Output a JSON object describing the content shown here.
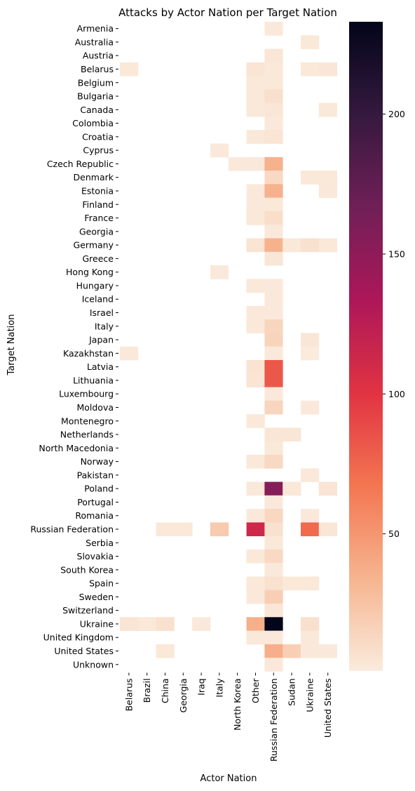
{
  "chart_data": {
    "type": "heatmap",
    "title": "Attacks by Actor Nation per Target Nation",
    "xlabel": "Actor Nation",
    "ylabel": "Target Nation",
    "x_categories": [
      "Belarus",
      "Brazil",
      "China",
      "Georgia",
      "Iraq",
      "Italy",
      "North Korea",
      "Other",
      "Russian Federation",
      "Sudan",
      "Ukraine",
      "United States"
    ],
    "y_categories": [
      "Armenia",
      "Australia",
      "Austria",
      "Belarus",
      "Belgium",
      "Bulgaria",
      "Canada",
      "Colombia",
      "Croatia",
      "Cyprus",
      "Czech Republic",
      "Denmark",
      "Estonia",
      "Finland",
      "France",
      "Georgia",
      "Germany",
      "Greece",
      "Hong Kong",
      "Hungary",
      "Iceland",
      "Israel",
      "Italy",
      "Japan",
      "Kazakhstan",
      "Latvia",
      "Lithuania",
      "Luxembourg",
      "Moldova",
      "Montenegro",
      "Netherlands",
      "North Macedonia",
      "Norway",
      "Pakistan",
      "Poland",
      "Portugal",
      "Romania",
      "Russian Federation",
      "Serbia",
      "Slovakia",
      "South Korea",
      "Spain",
      "Sweden",
      "Switzerland",
      "Ukraine",
      "United Kingdom",
      "United States",
      "Unknown"
    ],
    "values": [
      [
        null,
        null,
        null,
        null,
        null,
        null,
        null,
        null,
        2,
        null,
        null,
        null
      ],
      [
        null,
        null,
        null,
        null,
        null,
        null,
        null,
        null,
        null,
        null,
        3,
        null
      ],
      [
        null,
        null,
        null,
        null,
        null,
        null,
        null,
        null,
        4,
        null,
        null,
        null
      ],
      [
        3,
        null,
        null,
        null,
        null,
        null,
        null,
        5,
        3,
        null,
        3,
        4
      ],
      [
        null,
        null,
        null,
        null,
        null,
        null,
        null,
        3,
        3,
        null,
        null,
        null
      ],
      [
        null,
        null,
        null,
        null,
        null,
        null,
        null,
        3,
        8,
        null,
        null,
        null
      ],
      [
        null,
        null,
        null,
        null,
        null,
        null,
        null,
        3,
        4,
        null,
        null,
        3
      ],
      [
        null,
        null,
        null,
        null,
        null,
        null,
        null,
        null,
        2,
        null,
        null,
        null
      ],
      [
        null,
        null,
        null,
        null,
        null,
        null,
        null,
        3,
        5,
        null,
        null,
        null
      ],
      [
        null,
        null,
        null,
        null,
        null,
        2,
        null,
        null,
        null,
        null,
        null,
        null
      ],
      [
        null,
        null,
        null,
        null,
        null,
        null,
        2,
        2,
        35,
        null,
        null,
        null
      ],
      [
        null,
        null,
        null,
        null,
        null,
        null,
        null,
        null,
        12,
        null,
        3,
        3
      ],
      [
        null,
        null,
        null,
        null,
        null,
        null,
        null,
        2,
        35,
        null,
        null,
        2
      ],
      [
        null,
        null,
        null,
        null,
        null,
        null,
        null,
        2,
        3,
        null,
        null,
        null
      ],
      [
        null,
        null,
        null,
        null,
        null,
        null,
        null,
        3,
        9,
        null,
        null,
        null
      ],
      [
        null,
        null,
        null,
        null,
        null,
        null,
        null,
        null,
        2,
        null,
        null,
        null
      ],
      [
        null,
        null,
        null,
        null,
        null,
        null,
        null,
        5,
        35,
        3,
        7,
        3
      ],
      [
        null,
        null,
        null,
        null,
        null,
        null,
        null,
        null,
        4,
        null,
        null,
        null
      ],
      [
        null,
        null,
        null,
        null,
        null,
        2,
        null,
        null,
        null,
        null,
        null,
        null
      ],
      [
        null,
        null,
        null,
        null,
        null,
        null,
        null,
        3,
        2,
        null,
        null,
        null
      ],
      [
        null,
        null,
        null,
        null,
        null,
        null,
        null,
        null,
        2,
        null,
        null,
        null
      ],
      [
        null,
        null,
        null,
        null,
        null,
        null,
        null,
        2,
        2,
        null,
        null,
        null
      ],
      [
        null,
        null,
        null,
        null,
        null,
        null,
        null,
        3,
        14,
        null,
        null,
        null
      ],
      [
        null,
        null,
        null,
        null,
        null,
        null,
        null,
        null,
        15,
        null,
        4,
        null
      ],
      [
        2,
        null,
        null,
        null,
        null,
        null,
        null,
        null,
        2,
        null,
        1,
        null
      ],
      [
        null,
        null,
        null,
        null,
        null,
        null,
        null,
        6,
        82,
        null,
        null,
        null
      ],
      [
        null,
        null,
        null,
        null,
        null,
        null,
        null,
        5,
        82,
        null,
        null,
        null
      ],
      [
        null,
        null,
        null,
        null,
        null,
        null,
        null,
        null,
        2,
        null,
        null,
        null
      ],
      [
        null,
        null,
        null,
        null,
        null,
        null,
        null,
        null,
        14,
        null,
        2,
        null
      ],
      [
        null,
        null,
        null,
        null,
        null,
        null,
        null,
        2,
        null,
        null,
        null,
        null
      ],
      [
        null,
        null,
        null,
        null,
        null,
        null,
        null,
        null,
        4,
        4,
        null,
        null
      ],
      [
        null,
        null,
        null,
        null,
        null,
        null,
        null,
        null,
        3,
        null,
        null,
        null
      ],
      [
        null,
        null,
        null,
        null,
        null,
        null,
        null,
        3,
        12,
        null,
        null,
        null
      ],
      [
        null,
        null,
        null,
        null,
        null,
        null,
        null,
        null,
        null,
        null,
        2,
        null
      ],
      [
        null,
        null,
        null,
        null,
        null,
        null,
        null,
        3,
        155,
        3,
        null,
        5
      ],
      [
        null,
        null,
        null,
        null,
        null,
        null,
        null,
        null,
        2,
        null,
        null,
        null
      ],
      [
        null,
        null,
        null,
        null,
        null,
        null,
        null,
        2,
        13,
        null,
        2,
        null
      ],
      [
        null,
        null,
        3,
        3,
        null,
        21,
        null,
        113,
        7,
        null,
        73,
        4
      ],
      [
        null,
        null,
        null,
        null,
        null,
        null,
        null,
        null,
        3,
        null,
        null,
        null
      ],
      [
        null,
        null,
        null,
        null,
        null,
        null,
        null,
        3,
        12,
        null,
        null,
        null
      ],
      [
        null,
        null,
        null,
        null,
        null,
        null,
        null,
        null,
        2,
        null,
        null,
        null
      ],
      [
        null,
        null,
        null,
        null,
        null,
        null,
        null,
        3,
        7,
        3,
        3,
        null
      ],
      [
        null,
        null,
        null,
        null,
        null,
        null,
        null,
        2,
        18,
        null,
        null,
        null
      ],
      [
        null,
        null,
        null,
        null,
        null,
        null,
        null,
        null,
        4,
        null,
        null,
        null
      ],
      [
        5,
        3,
        7,
        null,
        2,
        null,
        null,
        37,
        233,
        null,
        8,
        null
      ],
      [
        null,
        null,
        null,
        null,
        null,
        null,
        null,
        3,
        2,
        null,
        2,
        null
      ],
      [
        null,
        null,
        3,
        null,
        null,
        null,
        null,
        null,
        37,
        18,
        2,
        2
      ],
      [
        null,
        null,
        null,
        null,
        null,
        null,
        null,
        null,
        2,
        null,
        null,
        null
      ]
    ],
    "colorbar": {
      "ticks": [
        50,
        100,
        150,
        200
      ],
      "range": [
        1,
        233
      ],
      "colormap": "rocket_r",
      "stops": [
        "#faebdd",
        "#f6b48f",
        "#f37651",
        "#e13342",
        "#ad1759",
        "#701f57",
        "#35193e",
        "#03051a"
      ]
    }
  }
}
